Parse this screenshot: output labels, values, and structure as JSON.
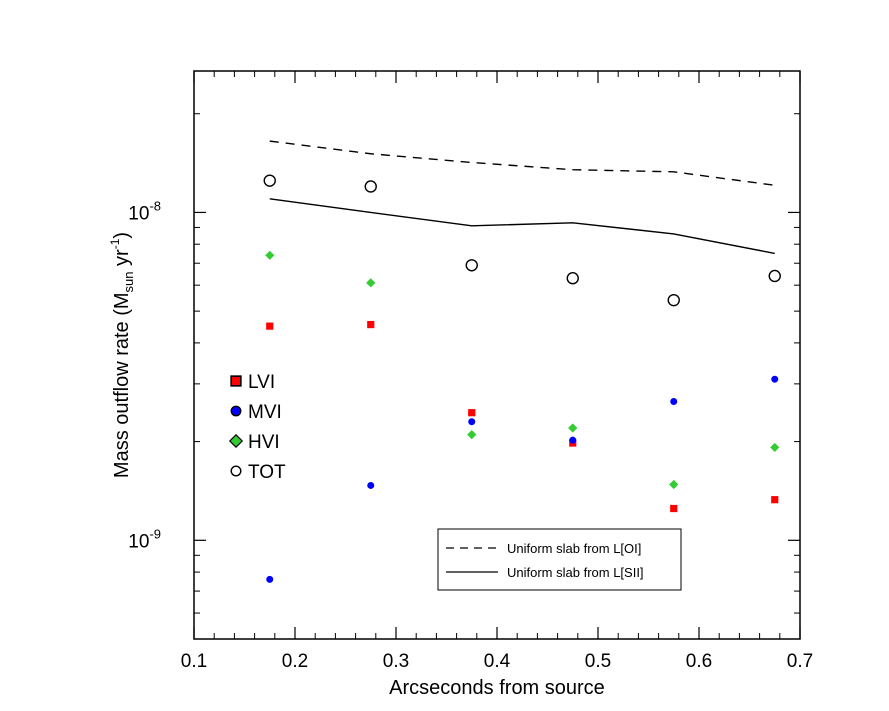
{
  "chart_data": {
    "type": "scatter",
    "xlabel": "Arcseconds from source",
    "ylabel": {
      "prefix": "Mass outflow rate (M",
      "subscript": "sun",
      "middle": " yr",
      "superscript": "-1",
      "suffix": ")"
    },
    "xlim": [
      0.1,
      0.7
    ],
    "ylim": [
      5e-10,
      2.7e-08
    ],
    "yscale": "log",
    "x_ticks": [
      0.1,
      0.2,
      0.3,
      0.4,
      0.5,
      0.6,
      0.7
    ],
    "x_tick_labels": [
      "0.1",
      "0.2",
      "0.3",
      "0.4",
      "0.5",
      "0.6",
      "0.7"
    ],
    "y_major_ticks": [
      {
        "value": 1e-09,
        "base": "10",
        "exponent": "-9"
      },
      {
        "value": 1e-08,
        "base": "10",
        "exponent": "-8"
      }
    ],
    "x": [
      0.175,
      0.275,
      0.375,
      0.475,
      0.575,
      0.675
    ],
    "series": [
      {
        "name": "LVI",
        "marker": "square",
        "color": "#ff0000",
        "values": [
          4.5e-09,
          4.55e-09,
          2.45e-09,
          1.98e-09,
          1.25e-09,
          1.33e-09
        ]
      },
      {
        "name": "MVI",
        "marker": "circle",
        "color": "#0000ff",
        "values": [
          7.6e-10,
          1.47e-09,
          2.3e-09,
          2.02e-09,
          2.65e-09,
          3.1e-09
        ]
      },
      {
        "name": "HVI",
        "marker": "diamond",
        "color": "#33cc33",
        "values": [
          7.4e-09,
          6.1e-09,
          2.1e-09,
          2.2e-09,
          1.48e-09,
          1.92e-09
        ]
      },
      {
        "name": "TOT",
        "marker": "open-circle",
        "color": "#000000",
        "values": [
          1.25e-08,
          1.2e-08,
          6.9e-09,
          6.3e-09,
          5.4e-09,
          6.4e-09
        ]
      }
    ],
    "lines": [
      {
        "name": "Uniform slab from L[OI]",
        "style": "dashed",
        "values": [
          1.65e-08,
          1.51e-08,
          1.42e-08,
          1.35e-08,
          1.33e-08,
          1.21e-08
        ]
      },
      {
        "name": "Uniform slab from L[SII]",
        "style": "solid",
        "values": [
          1.1e-08,
          1e-08,
          9.1e-09,
          9.3e-09,
          8.6e-09,
          7.5e-09
        ]
      }
    ]
  }
}
